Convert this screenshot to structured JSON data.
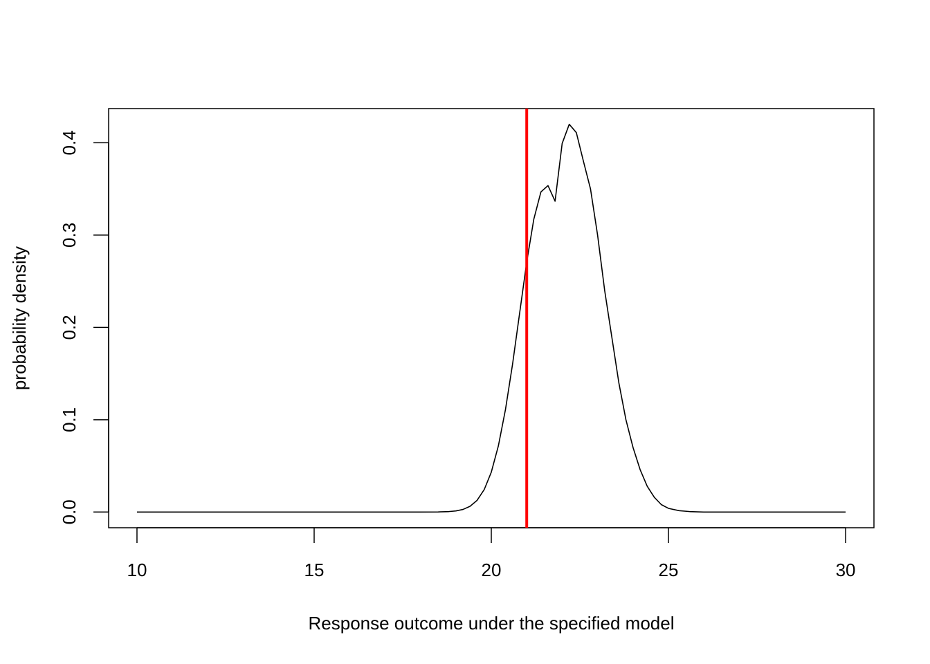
{
  "chart_data": {
    "type": "line",
    "title": "",
    "xlabel": "Response outcome under the specified model",
    "ylabel": "probability density",
    "xlim": [
      9.2,
      30.8
    ],
    "ylim": [
      -0.017,
      0.437
    ],
    "x_ticks": [
      10,
      15,
      20,
      25,
      30
    ],
    "x_tick_labels": [
      "10",
      "15",
      "20",
      "25",
      "30"
    ],
    "y_ticks": [
      0.0,
      0.1,
      0.2,
      0.3,
      0.4
    ],
    "y_tick_labels": [
      "0.0",
      "0.1",
      "0.2",
      "0.3",
      "0.4"
    ],
    "grid": false,
    "series": [
      {
        "color": "#000000",
        "x": [
          10,
          18.0,
          18.5,
          18.8,
          19.0,
          19.2,
          19.4,
          19.6,
          19.8,
          20.0,
          20.2,
          20.4,
          20.6,
          20.8,
          21.0,
          21.2,
          21.4,
          21.6,
          21.8,
          22.0,
          22.2,
          22.4,
          22.6,
          22.8,
          23.0,
          23.2,
          23.4,
          23.6,
          23.8,
          24.0,
          24.2,
          24.4,
          24.6,
          24.8,
          25.0,
          25.3,
          25.6,
          26.0,
          30
        ],
        "y": [
          0.0,
          0.0,
          0.0001,
          0.0005,
          0.0012,
          0.0028,
          0.0062,
          0.0127,
          0.0243,
          0.0432,
          0.0717,
          0.111,
          0.1601,
          0.2155,
          0.2707,
          0.3172,
          0.3467,
          0.3536,
          0.3367,
          0.3992,
          0.42,
          0.411,
          0.38,
          0.35,
          0.3,
          0.24,
          0.19,
          0.14,
          0.1,
          0.07,
          0.046,
          0.028,
          0.016,
          0.008,
          0.004,
          0.0015,
          0.0005,
          0.0,
          0.0
        ]
      }
    ],
    "vline": {
      "x": 21.0,
      "color": "#ff0000"
    }
  }
}
